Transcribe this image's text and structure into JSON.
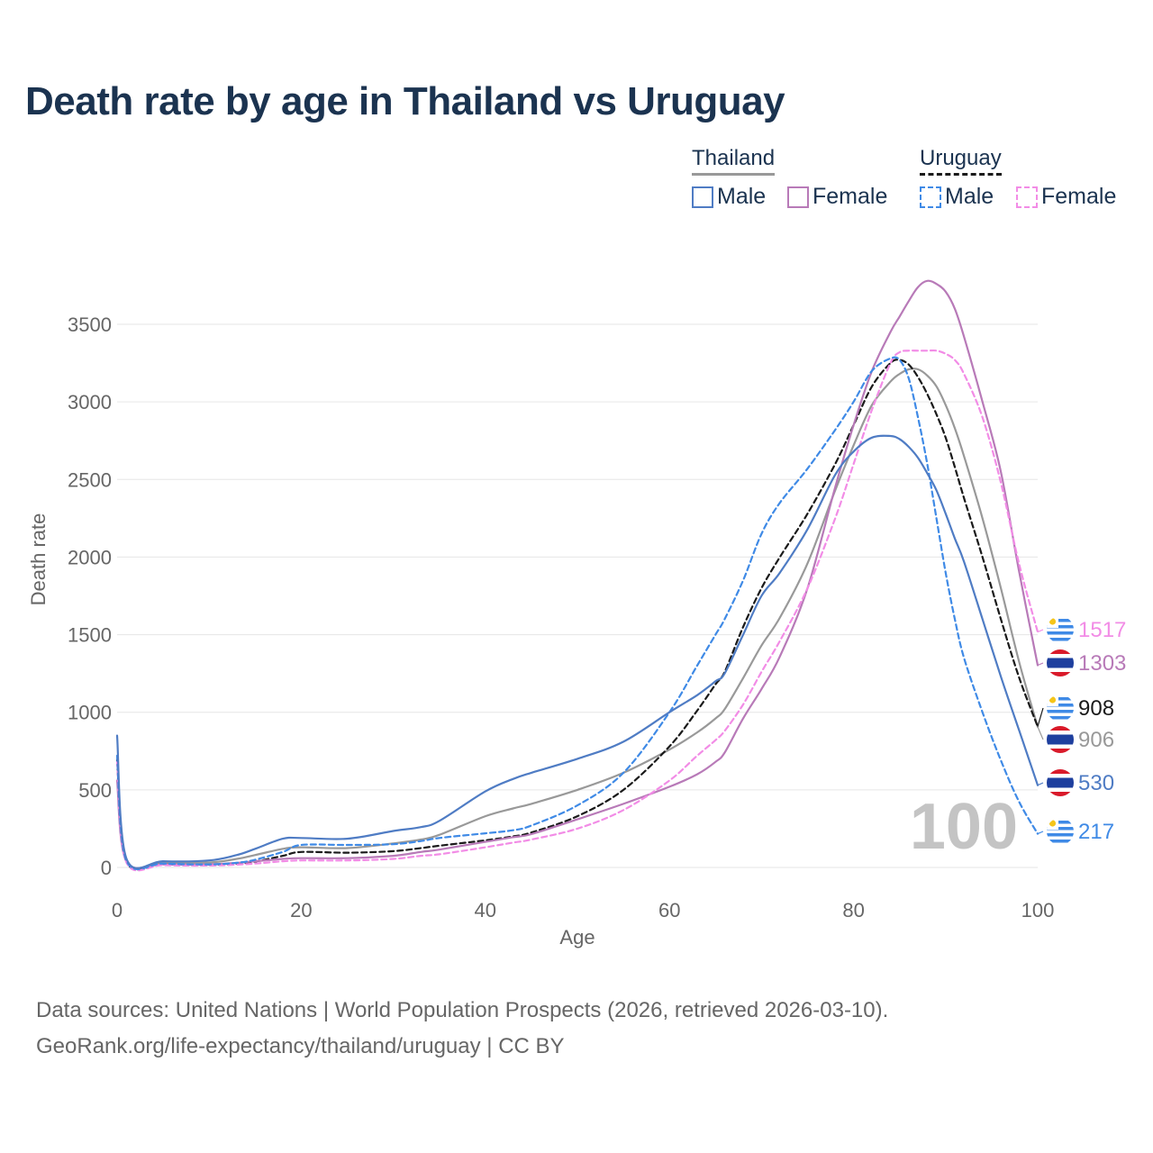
{
  "title": "Death rate by age in Thailand vs Uruguay",
  "legend": {
    "thailand_label": "Thailand",
    "uruguay_label": "Uruguay",
    "male_label": "Male",
    "female_label": "Female"
  },
  "footer": {
    "line1": "Data sources: United Nations | World Population Prospects (2026, retrieved 2026-03-10).",
    "line2": "GeoRank.org/life-expectancy/thailand/uruguay | CC BY"
  },
  "colors": {
    "thailand_male": "#4f7cc4",
    "thailand_female": "#b87ab8",
    "uruguay_male": "#3f8ae6",
    "uruguay_female": "#f28ce6",
    "thailand_total": "#999999",
    "uruguay_total": "#1a1a1a"
  },
  "chart_data": {
    "type": "line",
    "xlabel": "Age",
    "ylabel": "Death rate",
    "xlim": [
      0,
      100
    ],
    "ylim": [
      0,
      3500
    ],
    "xticks": [
      0,
      20,
      40,
      60,
      80,
      100
    ],
    "yticks": [
      0,
      500,
      1000,
      1500,
      2000,
      2500,
      3000,
      3500
    ],
    "age_watermark": "100",
    "x": [
      0,
      1,
      5,
      10,
      13,
      15,
      18,
      20,
      25,
      30,
      33,
      35,
      40,
      43,
      45,
      50,
      55,
      60,
      63,
      65,
      66,
      68,
      70,
      72,
      75,
      78,
      80,
      82,
      84,
      85,
      86,
      87,
      88,
      89,
      90,
      91,
      92,
      94,
      96,
      98,
      100
    ],
    "series": [
      {
        "name": "Thailand Male",
        "country": "Thailand",
        "sex": "Male",
        "style": "solid",
        "color_key": "thailand_male",
        "end_label": "530",
        "values": [
          850,
          60,
          40,
          45,
          80,
          120,
          185,
          190,
          185,
          235,
          260,
          300,
          490,
          570,
          610,
          700,
          810,
          1000,
          1110,
          1200,
          1250,
          1500,
          1750,
          1900,
          2180,
          2530,
          2680,
          2770,
          2780,
          2760,
          2710,
          2640,
          2540,
          2430,
          2280,
          2120,
          1970,
          1600,
          1230,
          880,
          530
        ]
      },
      {
        "name": "Thailand Female",
        "country": "Thailand",
        "sex": "Female",
        "style": "solid",
        "color_key": "thailand_female",
        "end_label": "1303",
        "values": [
          560,
          40,
          20,
          20,
          30,
          40,
          55,
          60,
          60,
          75,
          100,
          115,
          165,
          195,
          215,
          310,
          410,
          520,
          600,
          680,
          740,
          960,
          1150,
          1360,
          1800,
          2450,
          2850,
          3200,
          3450,
          3550,
          3650,
          3740,
          3780,
          3760,
          3710,
          3600,
          3420,
          3000,
          2550,
          1900,
          1303
        ]
      },
      {
        "name": "Uruguay Male",
        "country": "Uruguay",
        "sex": "Male",
        "style": "dashed",
        "color_key": "uruguay_male",
        "end_label": "217",
        "values": [
          720,
          45,
          25,
          20,
          30,
          50,
          100,
          145,
          145,
          150,
          170,
          190,
          220,
          240,
          270,
          400,
          610,
          1000,
          1300,
          1500,
          1600,
          1850,
          2150,
          2350,
          2570,
          2820,
          3000,
          3200,
          3280,
          3270,
          3150,
          2900,
          2600,
          2250,
          1900,
          1600,
          1350,
          1000,
          690,
          420,
          217
        ]
      },
      {
        "name": "Uruguay Female",
        "country": "Uruguay",
        "sex": "Female",
        "style": "dashed",
        "color_key": "uruguay_female",
        "end_label": "1517",
        "values": [
          680,
          35,
          15,
          12,
          18,
          25,
          40,
          45,
          45,
          55,
          75,
          85,
          130,
          160,
          180,
          250,
          370,
          560,
          720,
          820,
          880,
          1050,
          1260,
          1460,
          1800,
          2250,
          2600,
          2950,
          3250,
          3320,
          3330,
          3330,
          3330,
          3330,
          3310,
          3270,
          3180,
          2900,
          2480,
          1950,
          1517
        ]
      },
      {
        "name": "Thailand Total",
        "country": "Thailand",
        "sex": "Total",
        "style": "solid",
        "color_key": "thailand_total",
        "end_label": "906",
        "values": [
          700,
          50,
          30,
          32,
          55,
          80,
          120,
          130,
          125,
          155,
          180,
          210,
          330,
          380,
          410,
          500,
          610,
          760,
          870,
          960,
          1020,
          1220,
          1430,
          1610,
          1960,
          2430,
          2720,
          2980,
          3130,
          3180,
          3210,
          3210,
          3170,
          3100,
          2980,
          2830,
          2650,
          2250,
          1800,
          1320,
          906
        ]
      },
      {
        "name": "Uruguay Total",
        "country": "Uruguay",
        "sex": "Total",
        "style": "dashed",
        "color_key": "uruguay_total",
        "end_label": "908",
        "values": [
          690,
          40,
          20,
          16,
          24,
          38,
          75,
          100,
          95,
          105,
          125,
          140,
          175,
          200,
          225,
          330,
          500,
          780,
          1010,
          1180,
          1260,
          1550,
          1800,
          2000,
          2280,
          2600,
          2850,
          3100,
          3250,
          3270,
          3240,
          3160,
          3050,
          2920,
          2770,
          2580,
          2380,
          2000,
          1600,
          1220,
          908
        ]
      }
    ]
  }
}
